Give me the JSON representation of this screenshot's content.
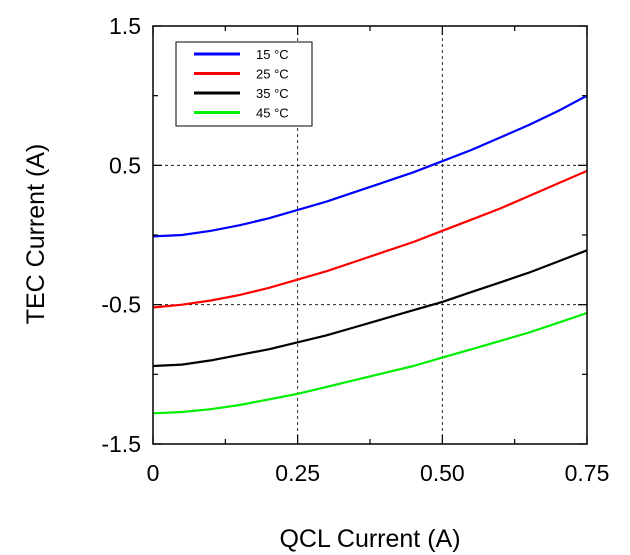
{
  "chart_data": {
    "type": "line",
    "xlabel": "QCL Current (A)",
    "ylabel": "TEC Current (A)",
    "xlim": [
      0,
      0.75
    ],
    "ylim": [
      -1.5,
      1.5
    ],
    "x_ticks": [
      0,
      0.25,
      0.5,
      0.75
    ],
    "x_tick_labels": [
      "0",
      "0.25",
      "0.50",
      "0.75"
    ],
    "y_ticks": [
      -1.5,
      -0.5,
      0.5,
      1.5
    ],
    "y_tick_labels": [
      "-1.5",
      "-0.5",
      "0.5",
      "1.5"
    ],
    "grid": "dashed, at 0.25/0.50 (x) and -0.5/0.5 (y)",
    "legend_position": "top-left",
    "x": [
      0,
      0.05,
      0.1,
      0.15,
      0.2,
      0.25,
      0.3,
      0.35,
      0.4,
      0.45,
      0.5,
      0.55,
      0.6,
      0.65,
      0.7,
      0.75
    ],
    "series": [
      {
        "name": "15 °C",
        "color": "#0000ff",
        "values": [
          -0.01,
          0.0,
          0.03,
          0.07,
          0.12,
          0.18,
          0.24,
          0.31,
          0.38,
          0.45,
          0.53,
          0.61,
          0.7,
          0.79,
          0.89,
          1.0
        ]
      },
      {
        "name": "25 °C",
        "color": "#ff0000",
        "values": [
          -0.52,
          -0.5,
          -0.47,
          -0.43,
          -0.38,
          -0.32,
          -0.26,
          -0.19,
          -0.12,
          -0.05,
          0.03,
          0.11,
          0.19,
          0.28,
          0.37,
          0.46
        ]
      },
      {
        "name": "35 °C",
        "color": "#000000",
        "values": [
          -0.94,
          -0.93,
          -0.9,
          -0.86,
          -0.82,
          -0.77,
          -0.72,
          -0.66,
          -0.6,
          -0.54,
          -0.48,
          -0.41,
          -0.34,
          -0.27,
          -0.19,
          -0.11
        ]
      },
      {
        "name": "45 °C",
        "color": "#00ee00",
        "values": [
          -1.28,
          -1.27,
          -1.25,
          -1.22,
          -1.18,
          -1.14,
          -1.09,
          -1.04,
          -0.99,
          -0.94,
          -0.88,
          -0.82,
          -0.76,
          -0.7,
          -0.63,
          -0.56
        ]
      }
    ]
  }
}
